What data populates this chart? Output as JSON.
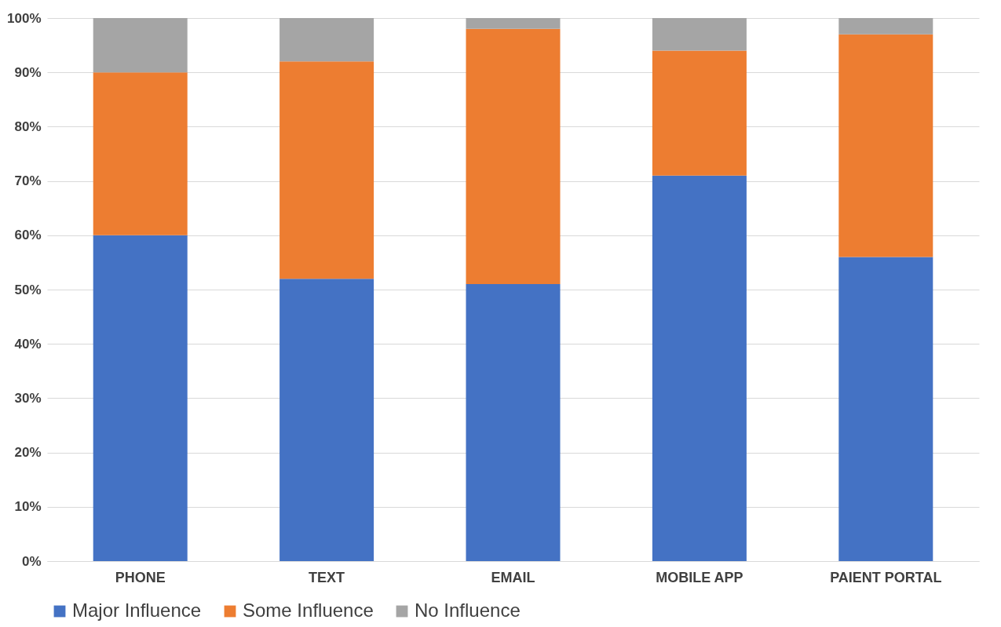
{
  "chart_data": {
    "type": "bar",
    "stacked": true,
    "categories": [
      "PHONE",
      "TEXT",
      "EMAIL",
      "MOBILE APP",
      "PAIENT PORTAL"
    ],
    "series": [
      {
        "name": "Major Influence",
        "color": "#4472c4",
        "values": [
          60,
          52,
          51,
          71,
          56
        ]
      },
      {
        "name": "Some Influence",
        "color": "#ed7d31",
        "values": [
          30,
          40,
          47,
          23,
          41
        ]
      },
      {
        "name": "No Influence",
        "color": "#a5a5a5",
        "values": [
          10,
          8,
          2,
          6,
          3
        ]
      }
    ],
    "ylim": [
      0,
      100
    ],
    "yticks": [
      {
        "value": 0,
        "label": "0%"
      },
      {
        "value": 10,
        "label": "10%"
      },
      {
        "value": 20,
        "label": "20%"
      },
      {
        "value": 30,
        "label": "30%"
      },
      {
        "value": 40,
        "label": "40%"
      },
      {
        "value": 50,
        "label": "50%"
      },
      {
        "value": 60,
        "label": "60%"
      },
      {
        "value": 70,
        "label": "70%"
      },
      {
        "value": 80,
        "label": "80%"
      },
      {
        "value": 90,
        "label": "90%"
      },
      {
        "value": 100,
        "label": "100%"
      }
    ],
    "grid": "y",
    "legend": "bottom"
  }
}
